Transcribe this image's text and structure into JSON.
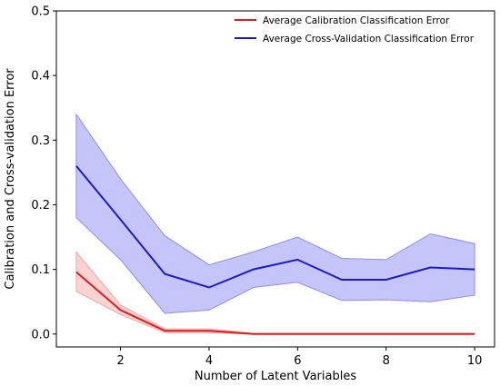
{
  "chart_data": {
    "type": "line",
    "title": "",
    "xlabel": "Number of Latent Variables",
    "ylabel": "Calibration and Cross-validation Error",
    "xlim": [
      0.55,
      10.45
    ],
    "ylim": [
      -0.02,
      0.5
    ],
    "xticks": [
      2,
      4,
      6,
      8,
      10
    ],
    "yticks": [
      0.0,
      0.1,
      0.2,
      0.3,
      0.4,
      0.5
    ],
    "xtick_labels": [
      "2",
      "4",
      "6",
      "8",
      "10"
    ],
    "ytick_labels": [
      "0.0",
      "0.1",
      "0.2",
      "0.3",
      "0.4",
      "0.5"
    ],
    "grid": false,
    "legend_position": "top-right",
    "x": [
      1,
      2,
      3,
      4,
      5,
      6,
      7,
      8,
      9,
      10
    ],
    "series": [
      {
        "name": "Average Calibration Classification Error",
        "color": "#e31a1c",
        "band_color": "#f4a6a6",
        "values": [
          0.096,
          0.037,
          0.005,
          0.005,
          0.0,
          0.0,
          0.0,
          0.0,
          0.0,
          0.0
        ],
        "upper": [
          0.127,
          0.045,
          0.008,
          0.008,
          0.001,
          0.001,
          0.001,
          0.001,
          0.001,
          0.001
        ],
        "lower": [
          0.066,
          0.03,
          0.002,
          0.002,
          0.0,
          0.0,
          0.0,
          0.0,
          0.0,
          0.0
        ]
      },
      {
        "name": "Average Cross-Validation Classification Error",
        "color": "#1a1acc",
        "band_color": "#8c8cf5",
        "values": [
          0.26,
          0.177,
          0.093,
          0.072,
          0.1,
          0.115,
          0.084,
          0.084,
          0.103,
          0.1
        ],
        "upper": [
          0.34,
          0.24,
          0.152,
          0.107,
          0.127,
          0.15,
          0.117,
          0.115,
          0.155,
          0.14
        ],
        "lower": [
          0.18,
          0.115,
          0.032,
          0.037,
          0.072,
          0.08,
          0.052,
          0.053,
          0.05,
          0.06
        ]
      }
    ]
  }
}
